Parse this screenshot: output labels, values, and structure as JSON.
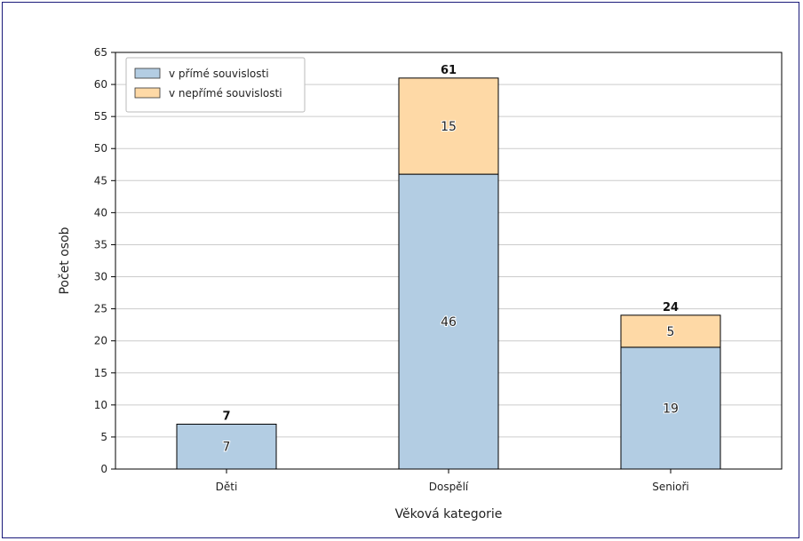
{
  "chart_data": {
    "type": "bar",
    "stacked": true,
    "categories": [
      "Děti",
      "Dospělí",
      "Senioři"
    ],
    "series": [
      {
        "name": "v přímé souvislosti",
        "values": [
          7,
          46,
          19
        ],
        "color": "#b3cde3"
      },
      {
        "name": "v nepřímé souvislosti",
        "values": [
          0,
          15,
          5
        ],
        "color": "#fed9a6"
      }
    ],
    "totals": [
      7,
      61,
      24
    ],
    "xlabel": "Věková kategorie",
    "ylabel": "Počet osob",
    "ylim": [
      0,
      65
    ],
    "yticks": [
      0,
      5,
      10,
      15,
      20,
      25,
      30,
      35,
      40,
      45,
      50,
      55,
      60,
      65
    ],
    "grid": "horizontal",
    "legend_position": "top-left"
  }
}
